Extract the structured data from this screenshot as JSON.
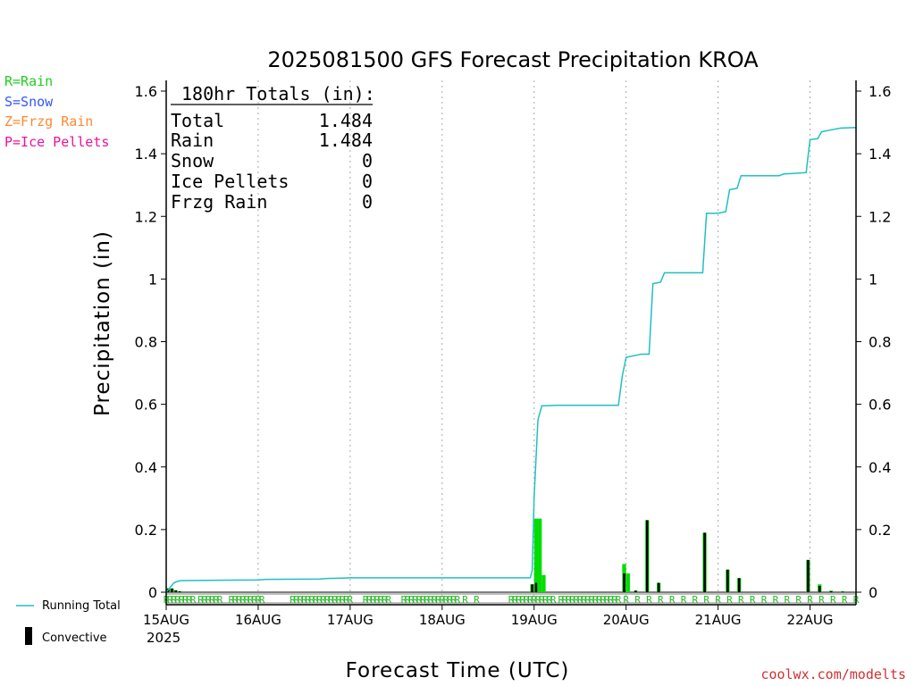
{
  "chart_data": {
    "type": "bar+line",
    "title": "2025081500 GFS Forecast Precipitation KROA",
    "xlabel": "Forecast Time (UTC)",
    "ylabel": "Precipitation (in)",
    "ylim": [
      0,
      1.6
    ],
    "xlim_hours": [
      0,
      180
    ],
    "y_ticks": [
      "0",
      "0.2",
      "0.4",
      "0.6",
      "0.8",
      "1",
      "1.2",
      "1.4",
      "1.6"
    ],
    "x_ticks": [
      {
        "hour": 0,
        "label": "15AUG"
      },
      {
        "hour": 24,
        "label": "16AUG"
      },
      {
        "hour": 48,
        "label": "17AUG"
      },
      {
        "hour": 72,
        "label": "18AUG"
      },
      {
        "hour": 96,
        "label": "19AUG"
      },
      {
        "hour": 120,
        "label": "20AUG"
      },
      {
        "hour": 144,
        "label": "21AUG"
      },
      {
        "hour": 168,
        "label": "22AUG"
      }
    ],
    "x_year_label": "2025",
    "grid": "vertical dotted at day boundaries",
    "series": [
      {
        "name": "Running Total",
        "kind": "line",
        "color": "#20c0c0",
        "points": [
          [
            0,
            0.0
          ],
          [
            1,
            0.015
          ],
          [
            2,
            0.03
          ],
          [
            3,
            0.035
          ],
          [
            4,
            0.037
          ],
          [
            10,
            0.038
          ],
          [
            24,
            0.039
          ],
          [
            26,
            0.041
          ],
          [
            40,
            0.042
          ],
          [
            42,
            0.044
          ],
          [
            46,
            0.045
          ],
          [
            48,
            0.046
          ],
          [
            95,
            0.046
          ],
          [
            95.5,
            0.07
          ],
          [
            96,
            0.3
          ],
          [
            97,
            0.55
          ],
          [
            98,
            0.595
          ],
          [
            102,
            0.597
          ],
          [
            118,
            0.597
          ],
          [
            119,
            0.69
          ],
          [
            120,
            0.75
          ],
          [
            122,
            0.755
          ],
          [
            124,
            0.76
          ],
          [
            126,
            0.76
          ],
          [
            127,
            0.985
          ],
          [
            129,
            0.99
          ],
          [
            130,
            1.02
          ],
          [
            140,
            1.02
          ],
          [
            141,
            1.21
          ],
          [
            144,
            1.21
          ],
          [
            146,
            1.215
          ],
          [
            147,
            1.285
          ],
          [
            149,
            1.29
          ],
          [
            150,
            1.33
          ],
          [
            160,
            1.33
          ],
          [
            161,
            1.335
          ],
          [
            167,
            1.34
          ],
          [
            168,
            1.445
          ],
          [
            170,
            1.448
          ],
          [
            171,
            1.47
          ],
          [
            173,
            1.475
          ],
          [
            176,
            1.482
          ],
          [
            180,
            1.484
          ]
        ]
      },
      {
        "name": "Rain",
        "kind": "bar",
        "color": "#00dd00",
        "bars": [
          [
            0.5,
            0.012
          ],
          [
            1.5,
            0.012
          ],
          [
            2.5,
            0.006
          ],
          [
            3.5,
            0.003
          ],
          [
            95.5,
            0.025
          ],
          [
            96.5,
            0.235
          ],
          [
            97.5,
            0.235
          ],
          [
            98.5,
            0.055
          ],
          [
            119.5,
            0.09
          ],
          [
            120.5,
            0.06
          ],
          [
            122.5,
            0.005
          ],
          [
            125.5,
            0.23
          ],
          [
            128.5,
            0.03
          ],
          [
            140.5,
            0.19
          ],
          [
            146.5,
            0.072
          ],
          [
            149.5,
            0.045
          ],
          [
            167.5,
            0.103
          ],
          [
            170.5,
            0.025
          ],
          [
            173.5,
            0.005
          ],
          [
            176.5,
            0.003
          ]
        ]
      },
      {
        "name": "Convective",
        "kind": "bar",
        "color": "#000000",
        "bars": [
          [
            0.5,
            0.012
          ],
          [
            1.5,
            0.012
          ],
          [
            2.5,
            0.006
          ],
          [
            3.5,
            0.003
          ],
          [
            95.5,
            0.025
          ],
          [
            96.5,
            0.03
          ],
          [
            119.5,
            0.06
          ],
          [
            122.5,
            0.005
          ],
          [
            125.5,
            0.23
          ],
          [
            128.5,
            0.03
          ],
          [
            140.5,
            0.19
          ],
          [
            146.5,
            0.072
          ],
          [
            149.5,
            0.045
          ],
          [
            167.5,
            0.103
          ],
          [
            170.5,
            0.02
          ],
          [
            173.5,
            0.003
          ],
          [
            176.5,
            0.002
          ]
        ]
      }
    ],
    "precip_type_markers": {
      "symbol": "R",
      "color": "#22bb22",
      "hours": [
        0,
        1,
        2,
        3,
        4,
        5,
        6,
        7,
        9,
        10,
        11,
        12,
        13,
        14,
        17,
        18,
        19,
        20,
        21,
        22,
        23,
        24,
        25,
        33,
        34,
        35,
        36,
        37,
        38,
        39,
        40,
        41,
        42,
        43,
        44,
        45,
        46,
        47,
        48,
        52,
        53,
        54,
        55,
        56,
        57,
        58,
        62,
        63,
        64,
        65,
        66,
        67,
        68,
        69,
        70,
        71,
        72,
        73,
        74,
        75,
        76,
        78,
        81,
        90,
        91,
        92,
        93,
        94,
        95,
        96,
        97,
        98,
        99,
        100,
        101,
        103,
        104,
        105,
        106,
        107,
        108,
        109,
        110,
        111,
        112,
        113,
        114,
        115,
        116,
        117,
        118,
        120,
        123,
        126,
        129,
        132,
        135,
        138,
        141,
        144,
        147,
        150,
        153,
        156,
        159,
        162,
        165,
        168,
        171,
        174,
        177,
        180
      ]
    },
    "totals_box": {
      "header": "180hr Totals (in):",
      "rows": [
        {
          "label": "Total",
          "value": "1.484"
        },
        {
          "label": "Rain",
          "value": "1.484"
        },
        {
          "label": "Snow",
          "value": "0"
        },
        {
          "label": "Ice Pellets",
          "value": "0"
        },
        {
          "label": "Frzg Rain",
          "value": "0"
        }
      ]
    },
    "type_legend": [
      {
        "text": "R=Rain",
        "color": "#22cc22"
      },
      {
        "text": "S=Snow",
        "color": "#3355ff"
      },
      {
        "text": "Z=Frzg Rain",
        "color": "#ff8833"
      },
      {
        "text": "P=Ice Pellets",
        "color": "#ee1199"
      }
    ],
    "series_legend": [
      {
        "text": "Running Total",
        "color": "#20c0c0",
        "kind": "line"
      },
      {
        "text": "Convective",
        "color": "#000000",
        "kind": "bar"
      }
    ]
  },
  "credit": "coolwx.com/modelts"
}
